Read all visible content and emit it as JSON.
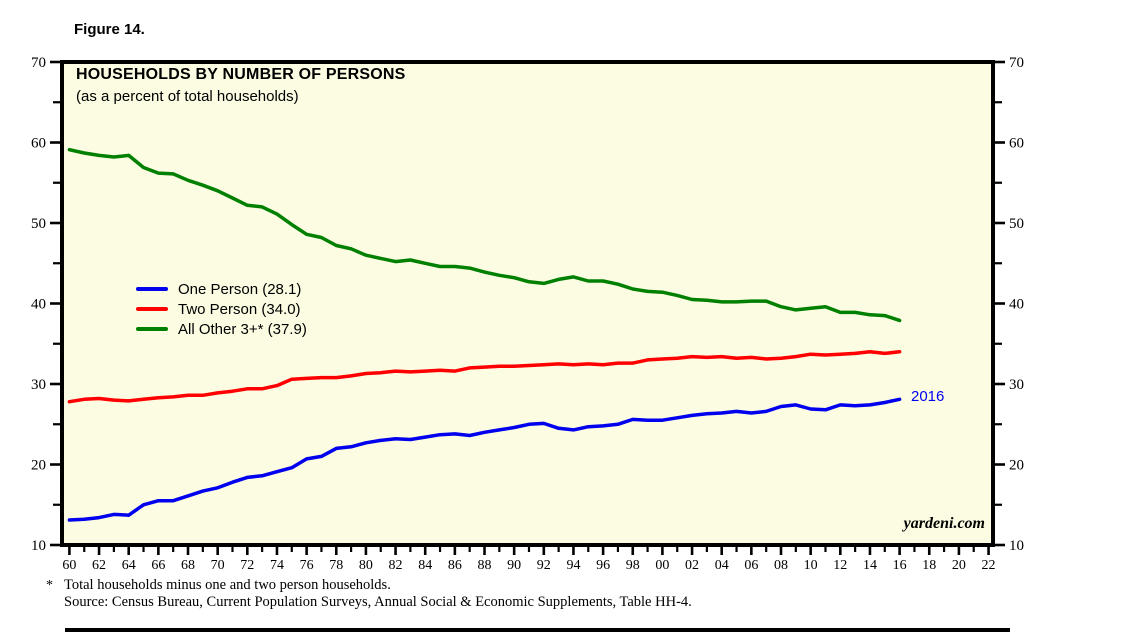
{
  "figure_label": "Figure 14.",
  "watermark": "yardeni.com",
  "annotations": {
    "last_point_label": "2016"
  },
  "legend": {
    "items": [
      {
        "label": "One Person (28.1)",
        "color": "#0000EE"
      },
      {
        "label": "Two Person (34.0)",
        "color": "#FF0000"
      },
      {
        "label": "All Other 3+* (37.9)",
        "color": "#008000"
      }
    ]
  },
  "footnotes": {
    "marker": "*",
    "note": "Total households minus one and two person households.",
    "source": "Source: Census Bureau, Current Population Surveys, Annual Social & Economic Supplements, Table HH-4."
  },
  "chart_data": {
    "type": "line",
    "title": "HOUSEHOLDS BY NUMBER OF PERSONS",
    "subtitle": "(as a percent of total households)",
    "plot_bg": "#FCFCE2",
    "frame_color": "#000000",
    "grid": false,
    "legend_position": "inside-left",
    "ylim": [
      10,
      70
    ],
    "xlim": [
      1959.5,
      2022.3
    ],
    "yticks_major": [
      10,
      20,
      30,
      40,
      50,
      60,
      70
    ],
    "yticks_minor": [
      15,
      25,
      35,
      45,
      55,
      65
    ],
    "xticks_major": {
      "years": [
        1960,
        1962,
        1964,
        1966,
        1968,
        1970,
        1972,
        1974,
        1976,
        1978,
        1980,
        1982,
        1984,
        1986,
        1988,
        1990,
        1992,
        1994,
        1996,
        1998,
        2000,
        2002,
        2004,
        2006,
        2008,
        2010,
        2012,
        2014,
        2016,
        2018,
        2020,
        2022
      ],
      "labels": [
        "60",
        "62",
        "64",
        "66",
        "68",
        "70",
        "72",
        "74",
        "76",
        "78",
        "80",
        "82",
        "84",
        "86",
        "88",
        "90",
        "92",
        "94",
        "96",
        "98",
        "00",
        "02",
        "04",
        "06",
        "08",
        "10",
        "12",
        "14",
        "16",
        "18",
        "20",
        "22"
      ]
    },
    "x": [
      1960,
      1961,
      1962,
      1963,
      1964,
      1965,
      1966,
      1967,
      1968,
      1969,
      1970,
      1971,
      1972,
      1973,
      1974,
      1975,
      1976,
      1977,
      1978,
      1979,
      1980,
      1981,
      1982,
      1983,
      1984,
      1985,
      1986,
      1987,
      1988,
      1989,
      1990,
      1991,
      1992,
      1993,
      1994,
      1995,
      1996,
      1997,
      1998,
      1999,
      2000,
      2001,
      2002,
      2003,
      2004,
      2005,
      2006,
      2007,
      2008,
      2009,
      2010,
      2011,
      2012,
      2013,
      2014,
      2015,
      2016
    ],
    "series": [
      {
        "name": "One Person (28.1)",
        "color": "#0000EE",
        "values": [
          13.1,
          13.2,
          13.4,
          13.8,
          13.7,
          15.0,
          15.5,
          15.5,
          16.1,
          16.7,
          17.1,
          17.8,
          18.4,
          18.6,
          19.1,
          19.6,
          20.7,
          21.0,
          22.0,
          22.2,
          22.7,
          23.0,
          23.2,
          23.1,
          23.4,
          23.7,
          23.8,
          23.6,
          24.0,
          24.3,
          24.6,
          25.0,
          25.1,
          24.5,
          24.3,
          24.7,
          24.8,
          25.0,
          25.6,
          25.5,
          25.5,
          25.8,
          26.1,
          26.3,
          26.4,
          26.6,
          26.4,
          26.6,
          27.2,
          27.4,
          26.9,
          26.8,
          27.4,
          27.3,
          27.4,
          27.7,
          28.1
        ]
      },
      {
        "name": "Two Person (34.0)",
        "color": "#FF0000",
        "values": [
          27.8,
          28.1,
          28.2,
          28.0,
          27.9,
          28.1,
          28.3,
          28.4,
          28.6,
          28.6,
          28.9,
          29.1,
          29.4,
          29.4,
          29.8,
          30.6,
          30.7,
          30.8,
          30.8,
          31.0,
          31.3,
          31.4,
          31.6,
          31.5,
          31.6,
          31.7,
          31.6,
          32.0,
          32.1,
          32.2,
          32.2,
          32.3,
          32.4,
          32.5,
          32.4,
          32.5,
          32.4,
          32.6,
          32.6,
          33.0,
          33.1,
          33.2,
          33.4,
          33.3,
          33.4,
          33.2,
          33.3,
          33.1,
          33.2,
          33.4,
          33.7,
          33.6,
          33.7,
          33.8,
          34.0,
          33.8,
          34.0
        ]
      },
      {
        "name": "All Other 3+* (37.9)",
        "color": "#008000",
        "values": [
          59.1,
          58.7,
          58.4,
          58.2,
          58.4,
          56.9,
          56.2,
          56.1,
          55.3,
          54.7,
          54.0,
          53.1,
          52.2,
          52.0,
          51.1,
          49.8,
          48.6,
          48.2,
          47.2,
          46.8,
          46.0,
          45.6,
          45.2,
          45.4,
          45.0,
          44.6,
          44.6,
          44.4,
          43.9,
          43.5,
          43.2,
          42.7,
          42.5,
          43.0,
          43.3,
          42.8,
          42.8,
          42.4,
          41.8,
          41.5,
          41.4,
          41.0,
          40.5,
          40.4,
          40.2,
          40.2,
          40.3,
          40.3,
          39.6,
          39.2,
          39.4,
          39.6,
          38.9,
          38.9,
          38.6,
          38.5,
          37.9
        ]
      }
    ]
  }
}
